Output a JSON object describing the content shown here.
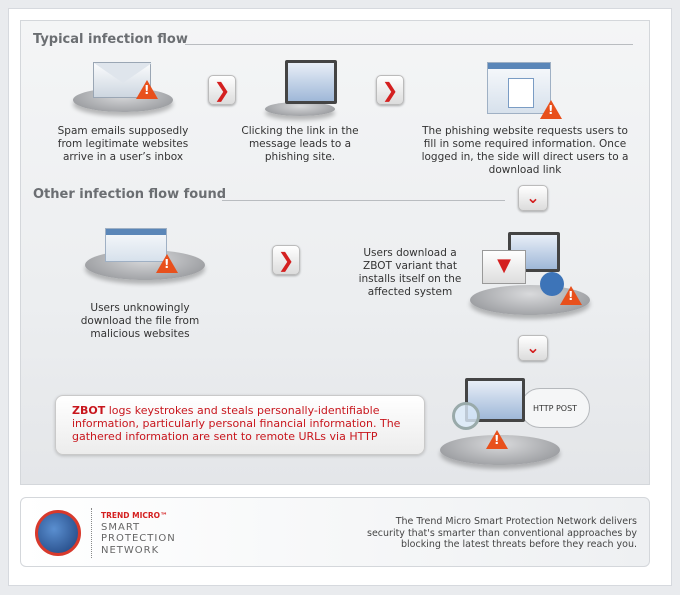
{
  "sections": {
    "typical": {
      "title": "Typical infection flow",
      "steps": [
        {
          "icon": "email-envelope-icon",
          "caption": "Spam emails supposedly from legitimate websites arrive in a user’s inbox"
        },
        {
          "icon": "monitor-click-icon",
          "caption": "Clicking the link in the message leads to a phishing site."
        },
        {
          "icon": "phishing-website-icon",
          "caption": "The phishing website requests users to fill in some required information. Once logged in, the side will direct users to a download link"
        }
      ]
    },
    "other": {
      "title": "Other infection flow found",
      "steps": [
        {
          "icon": "malicious-website-icon",
          "caption": "Users unknowingly download the file from malicious websites"
        },
        {
          "icon": "laptop-download-icon",
          "caption": "Users download a ZBOT variant that installs itself on the affected system"
        }
      ]
    }
  },
  "callout": {
    "highlight": "ZBOT",
    "text": " logs keystrokes and steals personally-identifiable information, particularly personal financial information. The gathered information are sent to remote URLs via HTTP"
  },
  "cloud_label": "HTTP POST",
  "arrow_glyph": "❯",
  "down_glyph": "⌄",
  "warning_glyph": "!",
  "footer": {
    "brand_top": "TREND MICRO™",
    "brand_lines": [
      "SMART",
      "PROTECTION",
      "NETWORK"
    ],
    "text": "The Trend Micro Smart Protection Network delivers security that's smarter than conventional approaches by blocking the latest threats before they reach you."
  },
  "colors": {
    "accent": "#d42020",
    "title": "#6b6e72"
  }
}
